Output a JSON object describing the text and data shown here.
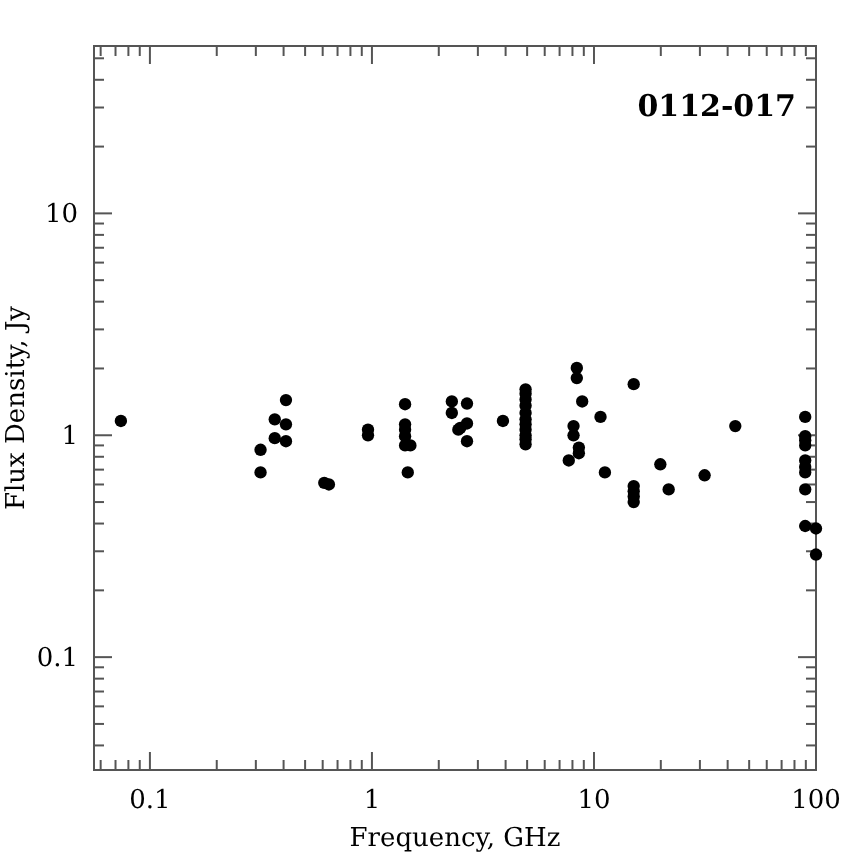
{
  "chart_data": {
    "type": "scatter",
    "title": "0112-017",
    "xlabel": "Frequency, GHz",
    "ylabel": "Flux Density, Jy",
    "log": "xy",
    "marker": "circle",
    "grid": false,
    "xlim": [
      0.056,
      100
    ],
    "ylim": [
      0.031,
      56.8
    ],
    "xticks": [
      {
        "value": 0.06,
        "label": null
      },
      {
        "value": 0.07,
        "label": null
      },
      {
        "value": 0.08,
        "label": null
      },
      {
        "value": 0.09,
        "label": null
      },
      {
        "value": 0.1,
        "label": "0.1"
      },
      {
        "value": 0.2,
        "label": null
      },
      {
        "value": 0.3,
        "label": null
      },
      {
        "value": 0.4,
        "label": null
      },
      {
        "value": 0.5,
        "label": null
      },
      {
        "value": 0.6,
        "label": null
      },
      {
        "value": 0.7,
        "label": null
      },
      {
        "value": 0.8,
        "label": null
      },
      {
        "value": 0.9,
        "label": null
      },
      1,
      {
        "value": 2,
        "label": null
      },
      {
        "value": 3,
        "label": null
      },
      {
        "value": 4,
        "label": null
      },
      {
        "value": 5,
        "label": null
      },
      {
        "value": 6,
        "label": null
      },
      {
        "value": 7,
        "label": null
      },
      {
        "value": 8,
        "label": null
      },
      {
        "value": 9,
        "label": null
      },
      10,
      {
        "value": 20,
        "label": null
      },
      {
        "value": 30,
        "label": null
      },
      {
        "value": 40,
        "label": null
      },
      {
        "value": 50,
        "label": null
      },
      {
        "value": 60,
        "label": null
      },
      {
        "value": 70,
        "label": null
      },
      {
        "value": 80,
        "label": null
      },
      {
        "value": 90,
        "label": null
      },
      100
    ],
    "yticks": [
      {
        "value": 0.04,
        "label": null
      },
      {
        "value": 0.05,
        "label": null
      },
      {
        "value": 0.06,
        "label": null
      },
      {
        "value": 0.07,
        "label": null
      },
      {
        "value": 0.08,
        "label": null
      },
      {
        "value": 0.09,
        "label": null
      },
      {
        "value": 0.1,
        "label": "0.1"
      },
      {
        "value": 0.2,
        "label": null
      },
      {
        "value": 0.3,
        "label": null
      },
      {
        "value": 0.4,
        "label": null
      },
      {
        "value": 0.5,
        "label": null
      },
      {
        "value": 0.6,
        "label": null
      },
      {
        "value": 0.7,
        "label": null
      },
      {
        "value": 0.8,
        "label": null
      },
      {
        "value": 0.9,
        "label": null
      },
      1,
      {
        "value": 2,
        "label": null
      },
      {
        "value": 3,
        "label": null
      },
      {
        "value": 4,
        "label": null
      },
      {
        "value": 5,
        "label": null
      },
      {
        "value": 6,
        "label": null
      },
      {
        "value": 7,
        "label": null
      },
      {
        "value": 8,
        "label": null
      },
      {
        "value": 9,
        "label": null
      },
      10,
      {
        "value": 20,
        "label": null
      },
      {
        "value": 30,
        "label": null
      },
      {
        "value": 40,
        "label": null
      },
      {
        "value": 50,
        "label": null
      }
    ],
    "series": [
      {
        "color": "#000000",
        "x": [
          0.074,
          0.315,
          0.315,
          0.365,
          0.365,
          0.41,
          0.41,
          0.41,
          0.61,
          0.64,
          0.96,
          0.96,
          1.41,
          1.41,
          1.41,
          1.41,
          1.41,
          1.49,
          1.45,
          2.29,
          2.29,
          2.45,
          2.5,
          2.68,
          2.68,
          2.68,
          3.89,
          4.92,
          4.92,
          4.92,
          4.92,
          4.92,
          4.92,
          4.92,
          4.92,
          4.92,
          4.92,
          4.92,
          8.37,
          8.37,
          8.85,
          8.09,
          8.09,
          8.55,
          8.55,
          7.7,
          10.7,
          11.2,
          15.1,
          15.1,
          15.1,
          15.1,
          15.1,
          19.9,
          21.7,
          31.5,
          43.3,
          89.4,
          89.4,
          89.4,
          89.4,
          89.4,
          89.4,
          89.4,
          89.4,
          89.4,
          100,
          100
        ],
        "values": [
          1.16,
          0.86,
          0.68,
          1.18,
          0.97,
          1.44,
          1.12,
          0.94,
          0.61,
          0.6,
          1.06,
          1.0,
          1.38,
          1.12,
          1.06,
          0.99,
          0.9,
          0.9,
          0.68,
          1.42,
          1.26,
          1.06,
          1.08,
          1.39,
          1.13,
          0.94,
          1.16,
          1.61,
          1.54,
          1.45,
          1.36,
          1.26,
          1.18,
          1.12,
          1.06,
          1.0,
          0.96,
          0.91,
          2.01,
          1.81,
          1.42,
          1.1,
          1.0,
          0.88,
          0.83,
          0.77,
          1.21,
          0.68,
          1.7,
          0.59,
          0.56,
          0.53,
          0.5,
          0.74,
          0.57,
          0.66,
          1.1,
          1.21,
          0.99,
          0.95,
          0.9,
          0.77,
          0.72,
          0.68,
          0.57,
          0.39,
          0.38,
          0.29
        ]
      }
    ]
  }
}
